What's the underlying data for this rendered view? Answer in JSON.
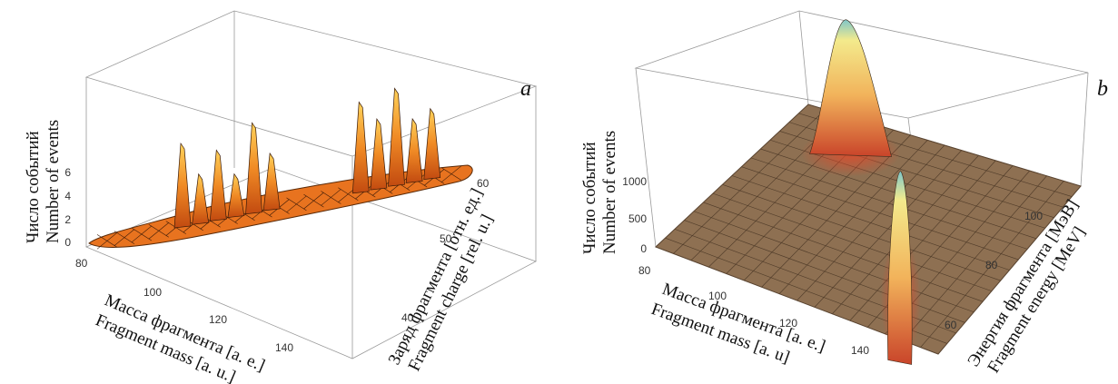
{
  "chart_data": [
    {
      "type": "surface3d",
      "panel_label": "a",
      "z_axis": {
        "label_ru": "Число событий",
        "label_en": "Number of events",
        "ticks": [
          "0",
          "2",
          "4",
          "6"
        ],
        "range": [
          0,
          7
        ]
      },
      "x_axis": {
        "label_ru": "Масса фрагмента [а. е.]",
        "label_en": "Fragment mass [a. u.]",
        "ticks": [
          "80",
          "100",
          "120",
          "140"
        ],
        "range": [
          75,
          160
        ]
      },
      "y_axis": {
        "label_ru": "Заряд фрагмента [отн. ед.]",
        "label_en": "Fragment charge [rel. u.]",
        "ticks": [
          "40",
          "50",
          "60"
        ],
        "range": [
          30,
          65
        ]
      },
      "peaks": [
        {
          "x": 96,
          "y": 38,
          "z": 6.0
        },
        {
          "x": 100,
          "y": 40,
          "z": 3.5
        },
        {
          "x": 104,
          "y": 41,
          "z": 5.0
        },
        {
          "x": 108,
          "y": 43,
          "z": 3.0
        },
        {
          "x": 112,
          "y": 44,
          "z": 6.5
        },
        {
          "x": 116,
          "y": 46,
          "z": 4.0
        },
        {
          "x": 136,
          "y": 55,
          "z": 6.5
        },
        {
          "x": 140,
          "y": 56,
          "z": 5.0
        },
        {
          "x": 144,
          "y": 57,
          "z": 7.0
        },
        {
          "x": 148,
          "y": 58,
          "z": 4.5
        },
        {
          "x": 152,
          "y": 60,
          "z": 5.0
        }
      ],
      "colors": {
        "surface": "#e8731f",
        "peak_high": "#ffd060",
        "mesh": "#3a1a08"
      }
    },
    {
      "type": "surface3d",
      "panel_label": "b",
      "z_axis": {
        "label_ru": "Число событий",
        "label_en": "Number of events",
        "ticks": [
          "0",
          "500",
          "1000"
        ],
        "range": [
          0,
          1400
        ]
      },
      "x_axis": {
        "label_ru": "Масса фрагмента [а. е.]",
        "label_en": "Fragment mass [a. u]",
        "ticks": [
          "80",
          "100",
          "120",
          "140"
        ],
        "range": [
          75,
          160
        ]
      },
      "y_axis": {
        "label_ru": "Энергия фрагмента [МэВ]",
        "label_en": "Fragment energy [MeV]",
        "ticks": [
          "60",
          "80",
          "100"
        ],
        "range": [
          50,
          110
        ]
      },
      "peaks": [
        {
          "x": 96,
          "y": 100,
          "z": 1250
        },
        {
          "x": 140,
          "y": 62,
          "z": 1150
        }
      ],
      "colors": {
        "floor": "#8e7052",
        "peak_high": "#f6ec8a",
        "peak_tip": "#5fb0c8",
        "mesh": "#4e3a28"
      }
    }
  ]
}
